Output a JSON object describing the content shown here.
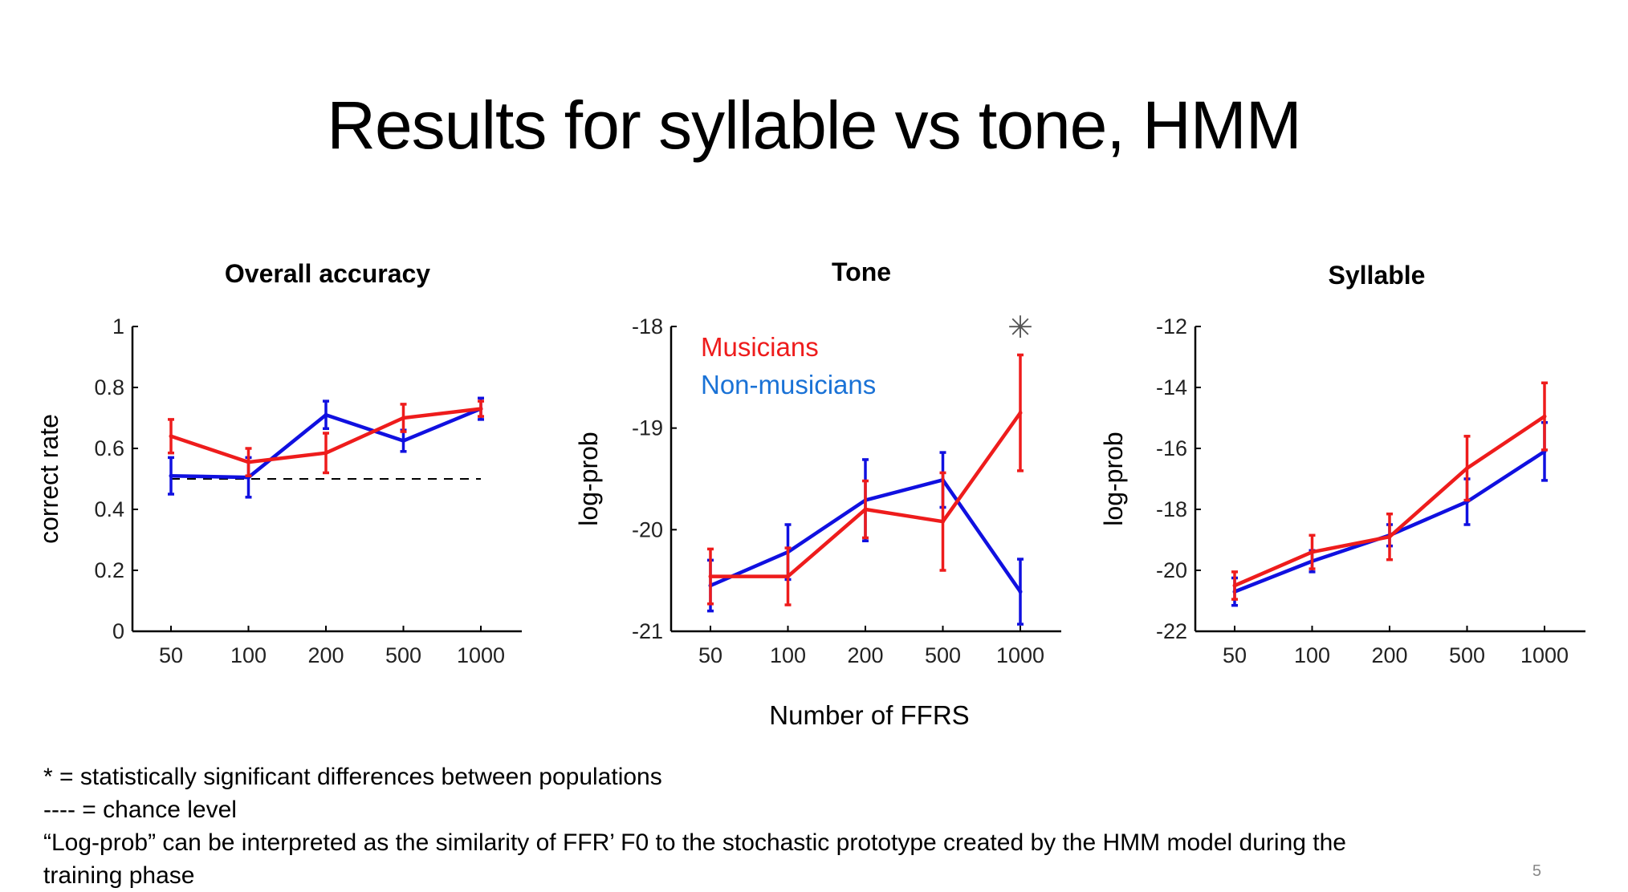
{
  "slide": {
    "title": "Results for syllable vs tone, HMM",
    "shared_xlabel": "Number of FFRS",
    "page_number": "5"
  },
  "legend": {
    "musicians": "Musicians",
    "nonmusicians": "Non-musicians"
  },
  "colors": {
    "musicians": "#ee1c1c",
    "nonmusicians": "#1010e0",
    "legend_nonmusicians": "#1a72d6",
    "chance": "#000000",
    "axis": "#000000"
  },
  "footnotes": [
    "* = statistically significant differences between populations",
    "---- = chance level",
    "“Log-prob” can be interpreted as the similarity of FFR’ F0 to the stochastic prototype created by the HMM model during the",
    "training phase"
  ],
  "chart_data": [
    {
      "type": "line",
      "title": "Overall accuracy",
      "xlabel": "",
      "ylabel": "correct rate",
      "categories": [
        "50",
        "100",
        "200",
        "500",
        "1000"
      ],
      "ylim": [
        0,
        1
      ],
      "yticks": [
        0,
        0.2,
        0.4,
        0.6,
        0.8,
        1
      ],
      "ytick_labels": [
        "0",
        "0.2",
        "0.4",
        "0.6",
        "0.8",
        "1"
      ],
      "chance_level": 0.5,
      "series": [
        {
          "name": "Non-musicians",
          "color_key": "nonmusicians",
          "values": [
            0.51,
            0.505,
            0.71,
            0.625,
            0.73
          ],
          "errors": [
            0.06,
            0.065,
            0.045,
            0.035,
            0.035
          ]
        },
        {
          "name": "Musicians",
          "color_key": "musicians",
          "values": [
            0.64,
            0.555,
            0.585,
            0.7,
            0.73
          ],
          "errors": [
            0.055,
            0.045,
            0.065,
            0.045,
            0.025
          ]
        }
      ]
    },
    {
      "type": "line",
      "title": "Tone",
      "xlabel": "",
      "ylabel": "log-prob",
      "categories": [
        "50",
        "100",
        "200",
        "500",
        "1000"
      ],
      "ylim": [
        -21,
        -18
      ],
      "yticks": [
        -21,
        -20,
        -19,
        -18
      ],
      "ytick_labels": [
        "-21",
        "-20",
        "-19",
        "-18"
      ],
      "legend": true,
      "significance_marker": {
        "category": "1000",
        "value": -18,
        "symbol": "✳"
      },
      "series": [
        {
          "name": "Non-musicians",
          "color_key": "nonmusicians",
          "values": [
            -20.55,
            -20.22,
            -19.71,
            -19.51,
            -20.61
          ],
          "errors": [
            0.25,
            0.27,
            0.4,
            0.27,
            0.32
          ]
        },
        {
          "name": "Musicians",
          "color_key": "musicians",
          "values": [
            -20.46,
            -20.46,
            -19.8,
            -19.92,
            -18.85
          ],
          "errors": [
            0.27,
            0.28,
            0.28,
            0.48,
            0.57
          ]
        }
      ]
    },
    {
      "type": "line",
      "title": "Syllable",
      "xlabel": "",
      "ylabel": "log-prob",
      "categories": [
        "50",
        "100",
        "200",
        "500",
        "1000"
      ],
      "ylim": [
        -22,
        -12
      ],
      "yticks": [
        -22,
        -20,
        -18,
        -16,
        -14,
        -12
      ],
      "ytick_labels": [
        "-22",
        "-20",
        "-18",
        "-16",
        "-14",
        "-12"
      ],
      "series": [
        {
          "name": "Non-musicians",
          "color_key": "nonmusicians",
          "values": [
            -20.7,
            -19.7,
            -18.85,
            -17.75,
            -16.1
          ],
          "errors": [
            0.45,
            0.35,
            0.35,
            0.75,
            0.95
          ]
        },
        {
          "name": "Musicians",
          "color_key": "musicians",
          "values": [
            -20.5,
            -19.4,
            -18.9,
            -16.65,
            -14.95
          ],
          "errors": [
            0.45,
            0.55,
            0.75,
            1.05,
            1.1
          ]
        }
      ]
    }
  ]
}
